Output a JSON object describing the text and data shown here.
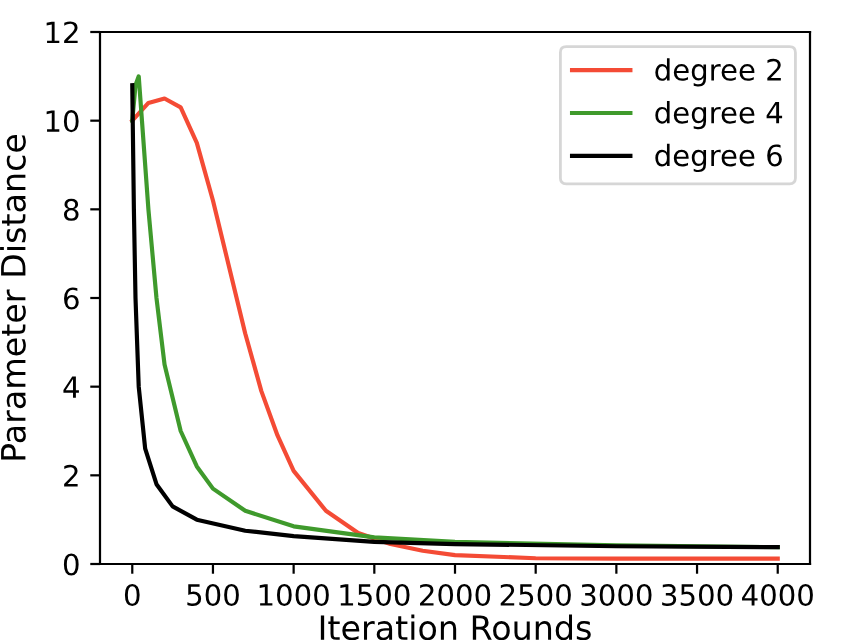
{
  "chart_data": {
    "type": "line",
    "xlabel": "Iteration Rounds",
    "ylabel": "Parameter Distance",
    "xlim": [
      -200,
      4200
    ],
    "xticks": [
      0,
      500,
      1000,
      1500,
      2000,
      2500,
      3000,
      3500,
      4000
    ],
    "ylim": [
      0,
      12
    ],
    "yticks": [
      0,
      2,
      4,
      6,
      8,
      10,
      12
    ],
    "grid": false,
    "legend": "top right",
    "series": [
      {
        "name": "degree 2",
        "color": "#f44b35",
        "x": [
          0,
          100,
          200,
          300,
          400,
          500,
          600,
          700,
          800,
          900,
          1000,
          1200,
          1400,
          1600,
          1800,
          2000,
          2500,
          3000,
          4000
        ],
        "values": [
          10.0,
          10.4,
          10.5,
          10.3,
          9.5,
          8.2,
          6.7,
          5.2,
          3.9,
          2.9,
          2.1,
          1.2,
          0.7,
          0.45,
          0.3,
          0.2,
          0.13,
          0.12,
          0.12
        ]
      },
      {
        "name": "degree 4",
        "color": "#3f9a2c",
        "x": [
          0,
          20,
          40,
          60,
          100,
          150,
          200,
          300,
          400,
          500,
          700,
          1000,
          1500,
          2000,
          3000,
          4000
        ],
        "values": [
          10.0,
          10.8,
          11.0,
          10.0,
          8.0,
          6.0,
          4.5,
          3.0,
          2.2,
          1.7,
          1.2,
          0.85,
          0.6,
          0.5,
          0.42,
          0.38
        ]
      },
      {
        "name": "degree 6",
        "color": "#000000",
        "x": [
          0,
          10,
          20,
          40,
          80,
          150,
          250,
          400,
          700,
          1000,
          1500,
          2000,
          3000,
          4000
        ],
        "values": [
          10.8,
          8.0,
          6.0,
          4.0,
          2.6,
          1.8,
          1.3,
          1.0,
          0.75,
          0.63,
          0.5,
          0.45,
          0.4,
          0.38
        ]
      }
    ]
  }
}
